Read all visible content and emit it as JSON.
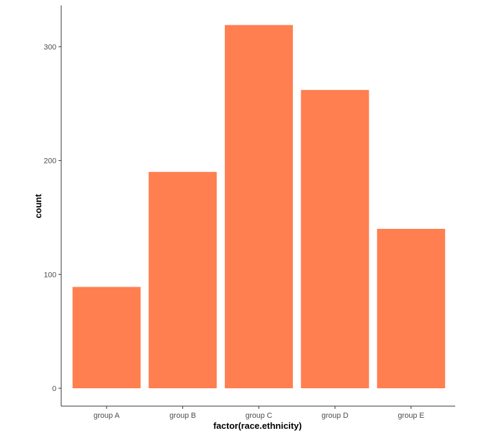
{
  "chart_data": {
    "type": "bar",
    "categories": [
      "group A",
      "group B",
      "group C",
      "group D",
      "group E"
    ],
    "values": [
      89,
      190,
      319,
      262,
      140
    ],
    "xlabel": "factor(race.ethnicity)",
    "ylabel": "count",
    "ylim": [
      0,
      330
    ],
    "yticks": [
      0,
      100,
      200,
      300
    ],
    "grid": false,
    "bar_color": "#FF7F50",
    "axis_color": "#333333"
  }
}
